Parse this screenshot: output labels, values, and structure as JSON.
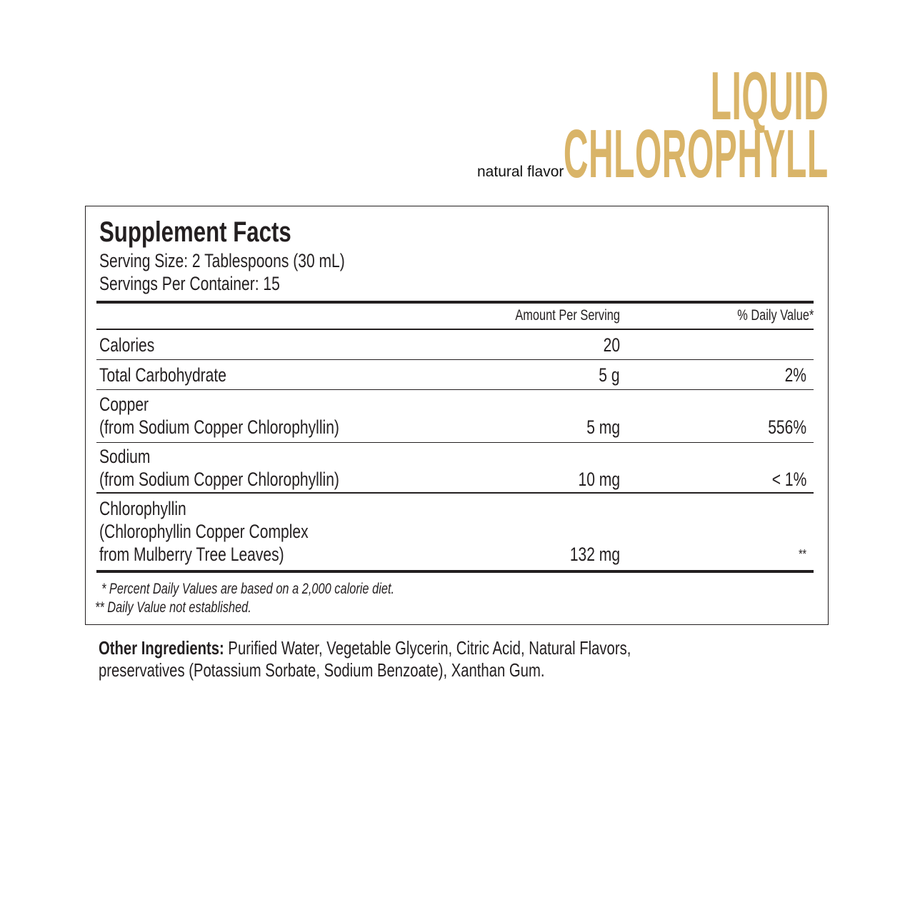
{
  "brand_color": "#d9b468",
  "header": {
    "title_line1": "LIQUID",
    "title_line2": "CHLOROPHYLL",
    "flavor": "natural flavor"
  },
  "facts": {
    "title": "Supplement Facts",
    "serving_size": "Serving Size: 2 Tablespoons (30 mL)",
    "servings_per_container": "Servings Per Container: 15",
    "col_amount": "Amount Per Serving",
    "col_dv": "% Daily Value*",
    "rows": [
      {
        "name": "Calories",
        "sub": "",
        "amount": "20",
        "dv": ""
      },
      {
        "name": "Total Carbohydrate",
        "sub": "",
        "amount": "5 g",
        "dv": "2%"
      },
      {
        "name": "Copper",
        "sub": "(from Sodium Copper Chlorophyllin)",
        "amount": "5 mg",
        "dv": "556%"
      },
      {
        "name": "Sodium",
        "sub": "(from Sodium Copper Chlorophyllin)",
        "amount": "10 mg",
        "dv": "< 1%"
      },
      {
        "name": "Chlorophyllin",
        "sub": "(Chlorophyllin Copper Complex",
        "sub2": "from Mulberry Tree Leaves)",
        "amount": "132 mg",
        "dv": "**"
      }
    ],
    "footnote1": "* Percent Daily Values are based on a 2,000 calorie diet.",
    "footnote2": "** Daily Value not established."
  },
  "other_ingredients": {
    "label": "Other Ingredients:",
    "line1": "Purified Water, Vegetable Glycerin, Citric Acid, Natural Flavors,",
    "line2": "preservatives (Potassium Sorbate, Sodium Benzoate), Xanthan Gum."
  }
}
